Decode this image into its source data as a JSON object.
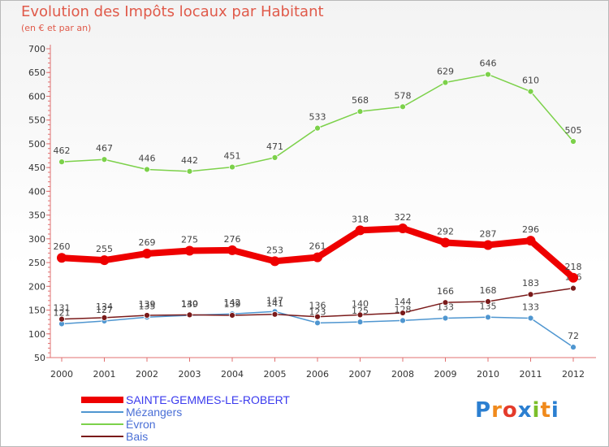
{
  "title": "Evolution des Impôts locaux par Habitant",
  "subtitle": "(en € et par an)",
  "logo": {
    "text": "Proxiti",
    "colors": [
      "#2b7fd1",
      "#f08a1c",
      "#e43b2b",
      "#2b7fd1",
      "#7bbf2a",
      "#f08a1c",
      "#2b7fd1"
    ]
  },
  "chart_data": {
    "type": "line",
    "x": [
      "2000",
      "2001",
      "2002",
      "2003",
      "2004",
      "2005",
      "2006",
      "2007",
      "2008",
      "2009",
      "2010",
      "2011",
      "2012"
    ],
    "ylim": [
      50,
      700
    ],
    "yticks": [
      50,
      100,
      150,
      200,
      250,
      300,
      350,
      400,
      450,
      500,
      550,
      600,
      650,
      700
    ],
    "grid": false,
    "legend_position": "bottom-left",
    "series": [
      {
        "name": "SAINTE-GEMMES-LE-ROBERT",
        "color": "#ee0000",
        "values": [
          260,
          255,
          269,
          275,
          276,
          253,
          261,
          318,
          322,
          292,
          287,
          296,
          218
        ]
      },
      {
        "name": "Mézangers",
        "color": "#4f96d0",
        "values": [
          121,
          127,
          135,
          139,
          142,
          147,
          123,
          125,
          128,
          133,
          135,
          133,
          72
        ]
      },
      {
        "name": "Évron",
        "color": "#7cd14a",
        "values": [
          462,
          467,
          446,
          442,
          451,
          471,
          533,
          568,
          578,
          629,
          646,
          610,
          505
        ]
      },
      {
        "name": "Bais",
        "color": "#7a1a1a",
        "values": [
          131,
          134,
          139,
          140,
          139,
          141,
          136,
          140,
          144,
          166,
          168,
          183,
          196
        ]
      }
    ]
  }
}
